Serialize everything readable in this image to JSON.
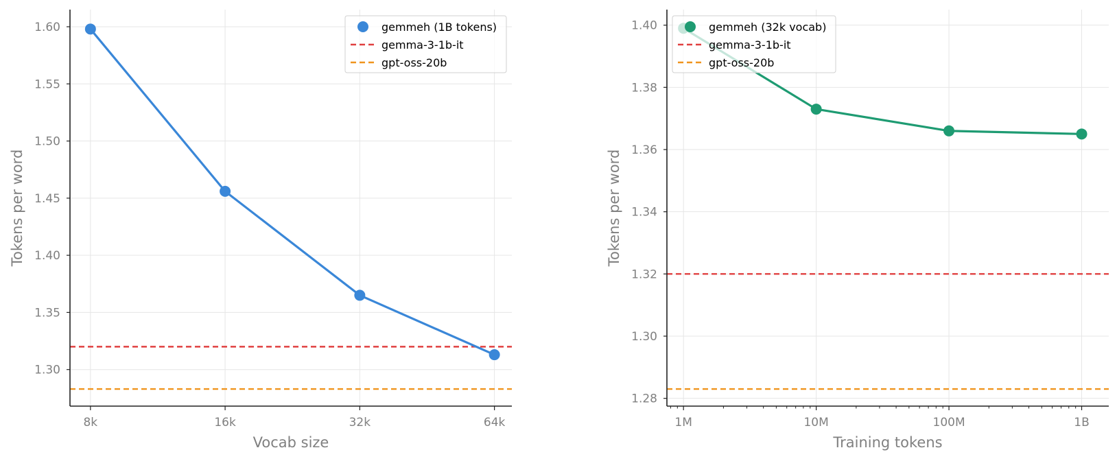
{
  "chart_data": [
    {
      "type": "line",
      "xscale": "log2",
      "x": [
        8000,
        16000,
        32000,
        64000
      ],
      "xticks": [
        8000,
        16000,
        32000,
        64000
      ],
      "xticklabels": [
        "8k",
        "16k",
        "32k",
        "64k"
      ],
      "xlim": [
        7200,
        70000
      ],
      "xlabel": "Vocab size",
      "ylabel": "Tokens per word",
      "ylim": [
        1.268,
        1.615
      ],
      "yticks": [
        1.3,
        1.35,
        1.4,
        1.45,
        1.5,
        1.55,
        1.6
      ],
      "yticklabels": [
        "1.30",
        "1.35",
        "1.40",
        "1.45",
        "1.50",
        "1.55",
        "1.60"
      ],
      "grid": true,
      "legend_position": "top-right",
      "series": [
        {
          "name": "gemmeh (1B tokens)",
          "values": [
            1.598,
            1.456,
            1.365,
            1.313
          ],
          "color": "#3a87d8",
          "style": "line-markers"
        }
      ],
      "reference_lines": [
        {
          "name": "gemma-3-1b-it",
          "y": 1.32,
          "color": "#e04040",
          "style": "dashed"
        },
        {
          "name": "gpt-oss-20b",
          "y": 1.283,
          "color": "#f0941e",
          "style": "dashed"
        }
      ]
    },
    {
      "type": "line",
      "xscale": "log10",
      "x": [
        1000000,
        10000000,
        100000000,
        1000000000
      ],
      "xticks": [
        1000000,
        10000000,
        100000000,
        1000000000
      ],
      "xticklabels": [
        "1M",
        "10M",
        "100M",
        "1B"
      ],
      "xlim": [
        750000,
        1600000000
      ],
      "xlabel": "Training tokens",
      "ylabel": "Tokens per word",
      "ylim": [
        1.2775,
        1.405
      ],
      "yticks": [
        1.28,
        1.3,
        1.32,
        1.34,
        1.36,
        1.38,
        1.4
      ],
      "yticklabels": [
        "1.28",
        "1.30",
        "1.32",
        "1.34",
        "1.36",
        "1.38",
        "1.40"
      ],
      "grid": true,
      "legend_position": "top-left",
      "series": [
        {
          "name": "gemmeh (32k vocab)",
          "values": [
            1.399,
            1.373,
            1.366,
            1.365
          ],
          "color": "#1e9b72",
          "style": "line-markers"
        }
      ],
      "reference_lines": [
        {
          "name": "gemma-3-1b-it",
          "y": 1.32,
          "color": "#e04040",
          "style": "dashed"
        },
        {
          "name": "gpt-oss-20b",
          "y": 1.283,
          "color": "#f0941e",
          "style": "dashed"
        }
      ]
    }
  ]
}
